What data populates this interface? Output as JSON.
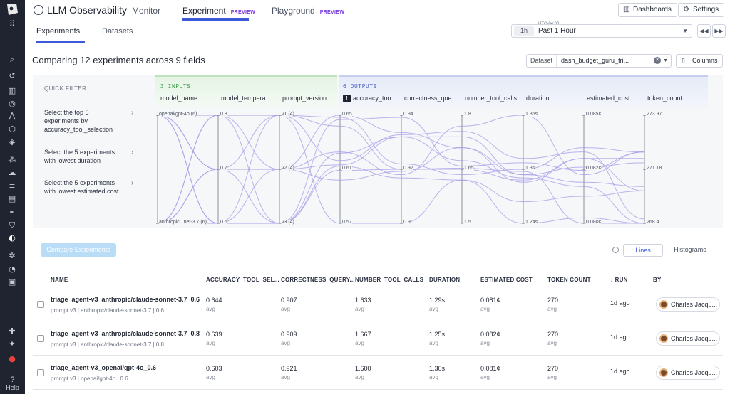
{
  "app": {
    "title": "LLM Observability"
  },
  "nav": {
    "tabs": [
      {
        "label": "Monitor",
        "badge": ""
      },
      {
        "label": "Experiment",
        "badge": "PREVIEW"
      },
      {
        "label": "Playground",
        "badge": "PREVIEW"
      }
    ],
    "dashboards": "Dashboards",
    "settings": "Settings"
  },
  "subnav": {
    "tabs": [
      "Experiments",
      "Datasets"
    ],
    "timezone": "UTC-04:00",
    "time_chip": "1h",
    "time_value": "Past 1 Hour"
  },
  "compare": {
    "title": "Comparing 12 experiments across 9 fields",
    "dataset_label": "Dataset",
    "dataset_value": "dash_budget_guru_tri...",
    "columns": "Columns"
  },
  "quick_filter": {
    "title": "QUICK FILTER",
    "items": [
      "Select the top 5 experiments by accuracy_tool_selection",
      "Select the 5 experiments with lowest duration",
      "Select the 5 experiments with lowest estimated cost"
    ]
  },
  "chart_data": {
    "type": "parallel-coordinates",
    "groups": [
      {
        "label": "3 INPUTS",
        "color": "#3f9b4f"
      },
      {
        "label": "6 OUTPUTS",
        "color": "#4b63c8"
      }
    ],
    "sort_badge": "1",
    "axes": [
      {
        "name": "model_name",
        "ticks": [
          "openai/gpt-4o (6)",
          "anthropic...net-3.7 (6)"
        ]
      },
      {
        "name": "model_tempera...",
        "ticks": [
          "0.8",
          "0.7",
          "0.6"
        ]
      },
      {
        "name": "prompt_version",
        "ticks": [
          "v1 (4)",
          "v2 (4)",
          "v3 (4)"
        ]
      },
      {
        "name": "accuracy_too...",
        "ticks": [
          "0.65",
          "0.61",
          "0.57"
        ]
      },
      {
        "name": "correctness_que...",
        "ticks": [
          "0.94",
          "0.92",
          "0.9"
        ]
      },
      {
        "name": "number_tool_calls",
        "ticks": [
          "1.8",
          "1.65",
          "1.5"
        ]
      },
      {
        "name": "duration",
        "ticks": [
          "1.35s",
          "1.3s",
          "1.24s"
        ]
      },
      {
        "name": "estimated_cost",
        "ticks": [
          "0.085¢",
          "0.082¢",
          "0.080¢"
        ]
      },
      {
        "name": "token_count",
        "ticks": [
          "273.97",
          "271.18",
          "268.4"
        ]
      }
    ],
    "lines": [
      [
        0,
        0.0,
        0.0,
        0.42,
        0.18,
        0.15,
        0.4,
        0.34,
        0.96
      ],
      [
        0,
        0.5,
        0.5,
        0.46,
        0.2,
        0.42,
        0.58,
        0.66,
        1.0
      ],
      [
        0,
        1.0,
        0.0,
        0.02,
        0.45,
        0.55,
        0.5,
        0.3,
        0.34
      ],
      [
        0,
        0.0,
        0.5,
        0.6,
        0.52,
        0.3,
        0.62,
        0.4,
        0.7
      ],
      [
        0,
        0.5,
        1.0,
        0.04,
        0.02,
        0.47,
        0.44,
        0.51,
        0.34
      ],
      [
        0,
        1.0,
        1.0,
        0.47,
        0.58,
        0.6,
        1.0,
        0.95,
        1.0
      ],
      [
        1,
        0.0,
        0.0,
        0.1,
        0.5,
        0.5,
        0.6,
        0.4,
        0.4
      ],
      [
        1,
        0.5,
        0.5,
        0.34,
        0.55,
        0.1,
        0.0,
        0.55,
        0.34
      ],
      [
        1,
        1.0,
        0.5,
        0.0,
        0.16,
        0.3,
        0.55,
        0.62,
        0.66
      ],
      [
        1,
        0.0,
        1.0,
        0.35,
        0.2,
        0.2,
        0.55,
        0.48,
        0.44
      ],
      [
        1,
        0.5,
        0.0,
        1.0,
        1.0,
        0.6,
        0.8,
        0.75,
        0.7
      ],
      [
        1,
        1.0,
        1.0,
        0.51,
        0.5,
        0.49,
        0.52,
        1.0,
        1.0
      ]
    ]
  },
  "actions": {
    "compare_button": "Compare Experiments",
    "view_lines": "Lines",
    "view_histograms": "Histograms"
  },
  "table": {
    "columns": [
      "NAME",
      "ACCURACY_TOOL_SEL...",
      "CORRECTNESS_QUERY...",
      "NUMBER_TOOL_CALLS",
      "DURATION",
      "ESTIMATED COST",
      "TOKEN COUNT",
      "RUN",
      "BY"
    ],
    "sort_arrow": "↓",
    "rows": [
      {
        "name": "triage_agent-v3_anthropic/claude-sonnet-3.7_0.6",
        "sub": "prompt v3 | anthropic/claude-sonnet-3.7 | 0.6",
        "accuracy": "0.644",
        "correctness": "0.907",
        "tool_calls": "1.633",
        "duration": "1.29s",
        "cost": "0.081¢",
        "tokens": "270",
        "agg": "avg",
        "run": "1d ago",
        "by": "Charles Jacqu..."
      },
      {
        "name": "triage_agent-v3_anthropic/claude-sonnet-3.7_0.8",
        "sub": "prompt v3 | anthropic/claude-sonnet-3.7 | 0.8",
        "accuracy": "0.639",
        "correctness": "0.909",
        "tool_calls": "1.667",
        "duration": "1.25s",
        "cost": "0.082¢",
        "tokens": "270",
        "agg": "avg",
        "run": "1d ago",
        "by": "Charles Jacqu..."
      },
      {
        "name": "triage_agent-v3_openai/gpt-4o_0.6",
        "sub": "prompt v3 | openai/gpt-4o | 0.6",
        "accuracy": "0.603",
        "correctness": "0.921",
        "tool_calls": "1.600",
        "duration": "1.30s",
        "cost": "0.081¢",
        "tokens": "270",
        "agg": "avg",
        "run": "1d ago",
        "by": "Charles Jacqu..."
      }
    ]
  },
  "sidebar": {
    "help": "Help"
  }
}
